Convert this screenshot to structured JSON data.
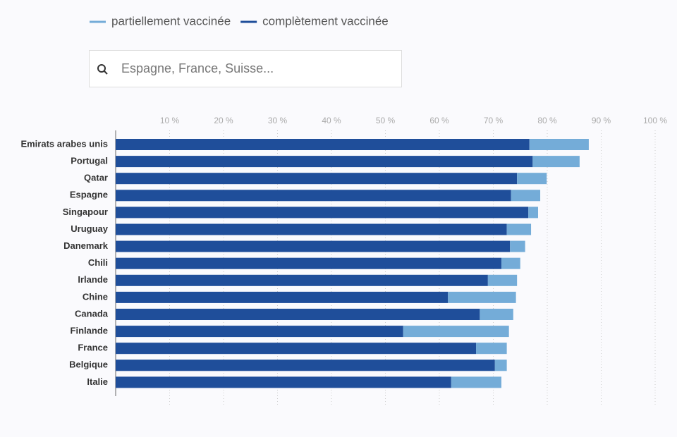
{
  "chart_data": {
    "type": "stacked-barh",
    "search_placeholder": "Espagne, France, Suisse...",
    "categories": [
      "Emirats arabes unis",
      "Portugal",
      "Qatar",
      "Espagne",
      "Singapour",
      "Uruguay",
      "Danemark",
      "Chili",
      "Irlande",
      "Chine",
      "Canada",
      "Finlande",
      "France",
      "Belgique",
      "Italie"
    ],
    "series": [
      {
        "name": "partiellement vaccinée",
        "color": "#74acd8",
        "values": [
          11.0,
          8.7,
          5.5,
          5.4,
          1.8,
          4.5,
          2.8,
          3.5,
          5.4,
          12.6,
          6.2,
          19.6,
          5.7,
          2.2,
          9.3
        ]
      },
      {
        "name": "complètement vaccinée",
        "color": "#1f4e9a",
        "values": [
          76.7,
          77.3,
          74.4,
          73.3,
          76.5,
          72.5,
          73.1,
          71.5,
          69.0,
          61.6,
          67.5,
          53.3,
          66.8,
          70.3,
          62.2
        ]
      }
    ],
    "xlim": [
      0,
      100
    ],
    "xticks": [
      {
        "value": 10,
        "label": "10 %"
      },
      {
        "value": 20,
        "label": "20 %"
      },
      {
        "value": 30,
        "label": "30 %"
      },
      {
        "value": 40,
        "label": "40 %"
      },
      {
        "value": 50,
        "label": "50 %"
      },
      {
        "value": 60,
        "label": "60 %"
      },
      {
        "value": 70,
        "label": "70 %"
      },
      {
        "value": 80,
        "label": "80 %"
      },
      {
        "value": 90,
        "label": "90 %"
      },
      {
        "value": 100,
        "label": "100 %"
      }
    ],
    "grid": true
  }
}
